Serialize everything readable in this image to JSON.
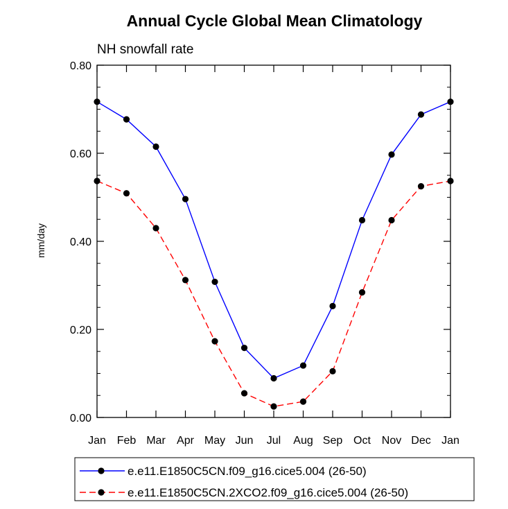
{
  "chart_data": {
    "type": "line",
    "title": "Annual Cycle Global Mean Climatology",
    "subtitle": "NH snowfall rate",
    "ylabel": "mm/day",
    "xlabel": "",
    "categories": [
      "Jan",
      "Feb",
      "Mar",
      "Apr",
      "May",
      "Jun",
      "Jul",
      "Aug",
      "Sep",
      "Oct",
      "Nov",
      "Dec",
      "Jan"
    ],
    "ylim": [
      0,
      0.8
    ],
    "yticks": [
      0,
      0.2,
      0.4,
      0.6,
      0.8
    ],
    "ytick_labels": [
      "0.00",
      "0.20",
      "0.40",
      "0.60",
      "0.80"
    ],
    "grid": false,
    "legend_position": "bottom",
    "series": [
      {
        "name": "e.e11.E1850C5CN.f09_g16.cice5.004 (26-50)",
        "color": "#0000ff",
        "line_style": "solid",
        "marker": "filled-circle",
        "values": [
          0.717,
          0.677,
          0.615,
          0.496,
          0.308,
          0.158,
          0.089,
          0.118,
          0.253,
          0.448,
          0.597,
          0.688,
          0.717
        ]
      },
      {
        "name": "e.e11.E1850C5CN.2XCO2.f09_g16.cice5.004 (26-50)",
        "color": "#ff0000",
        "line_style": "dashed",
        "marker": "filled-circle",
        "values": [
          0.537,
          0.509,
          0.43,
          0.312,
          0.173,
          0.055,
          0.025,
          0.036,
          0.105,
          0.284,
          0.448,
          0.525,
          0.537
        ]
      }
    ]
  }
}
